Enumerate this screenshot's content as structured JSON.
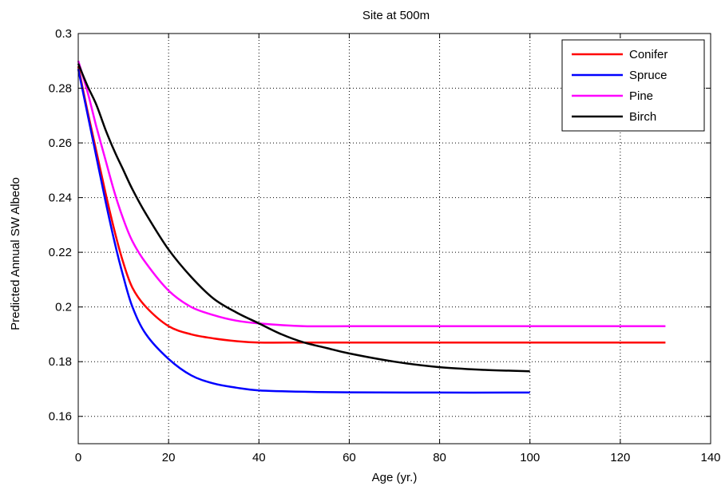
{
  "chart_data": {
    "type": "line",
    "title": "Site at 500m",
    "xlabel": "Age (yr.)",
    "ylabel": "Predicted Annual SW Albedo",
    "xlim": [
      0,
      140
    ],
    "ylim": [
      0.15,
      0.3
    ],
    "xticks": [
      0,
      20,
      40,
      60,
      80,
      100,
      120,
      140
    ],
    "yticks": [
      0.16,
      0.18,
      0.2,
      0.22,
      0.24,
      0.26,
      0.28,
      0.3
    ],
    "xtick_labels": [
      "0",
      "20",
      "40",
      "60",
      "80",
      "100",
      "120",
      "140"
    ],
    "ytick_labels": [
      "0.16",
      "0.18",
      "0.2",
      "0.22",
      "0.24",
      "0.26",
      "0.28",
      "0.3"
    ],
    "grid": true,
    "legend_position": "top-right",
    "series": [
      {
        "name": "Conifer",
        "color": "#ff0000",
        "x": [
          0,
          2,
          4,
          6,
          8,
          10,
          12,
          15,
          20,
          25,
          30,
          35,
          40,
          50,
          60,
          80,
          100,
          130
        ],
        "y": [
          0.288,
          0.272,
          0.257,
          0.242,
          0.228,
          0.216,
          0.207,
          0.2,
          0.193,
          0.19,
          0.1885,
          0.1875,
          0.187,
          0.187,
          0.187,
          0.187,
          0.187,
          0.187
        ]
      },
      {
        "name": "Spruce",
        "color": "#0000ff",
        "x": [
          0,
          2,
          4,
          6,
          8,
          10,
          12,
          15,
          20,
          25,
          30,
          35,
          40,
          50,
          60,
          80,
          100
        ],
        "y": [
          0.287,
          0.271,
          0.255,
          0.239,
          0.224,
          0.211,
          0.2,
          0.19,
          0.181,
          0.175,
          0.172,
          0.1705,
          0.1695,
          0.169,
          0.1688,
          0.1687,
          0.1687
        ]
      },
      {
        "name": "Pine",
        "color": "#ff00ff",
        "x": [
          0,
          2,
          4,
          6,
          8,
          10,
          12,
          15,
          20,
          25,
          30,
          35,
          40,
          50,
          60,
          80,
          100,
          130
        ],
        "y": [
          0.29,
          0.279,
          0.266,
          0.254,
          0.242,
          0.232,
          0.224,
          0.216,
          0.206,
          0.2,
          0.197,
          0.195,
          0.194,
          0.193,
          0.193,
          0.193,
          0.193,
          0.193
        ]
      },
      {
        "name": "Birch",
        "color": "#000000",
        "x": [
          0,
          2,
          4,
          6,
          8,
          10,
          12,
          15,
          20,
          25,
          30,
          35,
          40,
          45,
          50,
          55,
          60,
          70,
          80,
          90,
          100
        ],
        "y": [
          0.289,
          0.281,
          0.274,
          0.265,
          0.257,
          0.25,
          0.243,
          0.234,
          0.221,
          0.211,
          0.203,
          0.198,
          0.194,
          0.19,
          0.187,
          0.185,
          0.183,
          0.18,
          0.178,
          0.177,
          0.1765
        ]
      }
    ]
  }
}
